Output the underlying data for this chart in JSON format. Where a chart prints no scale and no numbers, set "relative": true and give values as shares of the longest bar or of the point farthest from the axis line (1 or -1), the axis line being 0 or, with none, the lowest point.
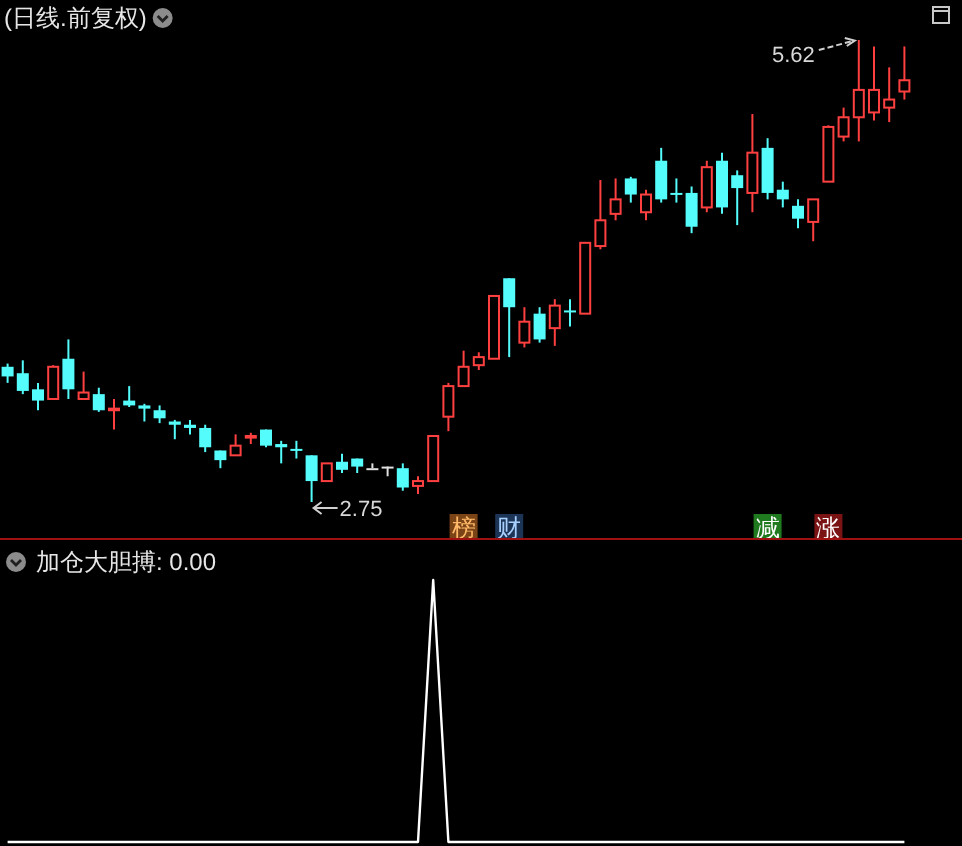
{
  "chart_data": [
    {
      "type": "candlestick",
      "title": "(日线.前复权)",
      "categories": [
        null,
        null,
        null,
        null,
        null,
        null,
        null,
        null,
        null,
        null,
        null,
        null,
        null,
        null,
        null,
        null,
        null,
        null,
        null,
        null,
        null,
        null,
        null,
        null,
        null,
        null,
        null,
        null,
        null,
        null,
        "榜",
        null,
        null,
        "财",
        null,
        null,
        null,
        null,
        null,
        null,
        null,
        null,
        null,
        null,
        null,
        null,
        null,
        null,
        null,
        null,
        "减",
        null,
        null,
        null,
        "涨",
        null,
        null,
        null,
        null,
        null
      ],
      "ohlc": [
        [
          3.59,
          3.61,
          3.49,
          3.53
        ],
        [
          3.55,
          3.63,
          3.42,
          3.44
        ],
        [
          3.45,
          3.49,
          3.32,
          3.38
        ],
        [
          3.39,
          3.6,
          3.39,
          3.59
        ],
        [
          3.64,
          3.76,
          3.39,
          3.45
        ],
        [
          3.39,
          3.56,
          3.39,
          3.43
        ],
        [
          3.42,
          3.46,
          3.31,
          3.32
        ],
        [
          3.32,
          3.39,
          3.2,
          3.33
        ],
        [
          3.38,
          3.47,
          3.34,
          3.35
        ],
        [
          3.35,
          3.36,
          3.25,
          3.33
        ],
        [
          3.32,
          3.35,
          3.24,
          3.27
        ],
        [
          3.25,
          3.26,
          3.14,
          3.23
        ],
        [
          3.23,
          3.26,
          3.17,
          3.21
        ],
        [
          3.21,
          3.23,
          3.06,
          3.09
        ],
        [
          3.07,
          3.07,
          2.96,
          3.01
        ],
        [
          3.04,
          3.17,
          3.04,
          3.1
        ],
        [
          3.15,
          3.18,
          3.11,
          3.16
        ],
        [
          3.2,
          3.2,
          3.09,
          3.1
        ],
        [
          3.11,
          3.13,
          2.99,
          3.09
        ],
        [
          3.08,
          3.13,
          3.02,
          3.07
        ],
        [
          3.04,
          3.04,
          2.75,
          2.88
        ],
        [
          2.88,
          2.99,
          2.88,
          2.99
        ],
        [
          3.0,
          3.05,
          2.93,
          2.95
        ],
        [
          3.02,
          3.02,
          2.93,
          2.97
        ],
        [
          2.96,
          2.99,
          2.96,
          2.96
        ],
        [
          2.97,
          2.97,
          2.91,
          2.97
        ],
        [
          2.96,
          2.99,
          2.82,
          2.84
        ],
        [
          2.85,
          2.91,
          2.8,
          2.88
        ],
        [
          2.88,
          3.16,
          2.88,
          3.16
        ],
        [
          3.28,
          3.49,
          3.19,
          3.47
        ],
        [
          3.47,
          3.69,
          3.47,
          3.59
        ],
        [
          3.6,
          3.68,
          3.57,
          3.65
        ],
        [
          3.64,
          4.03,
          3.64,
          4.03
        ],
        [
          4.14,
          4.14,
          3.65,
          3.96
        ],
        [
          3.74,
          3.96,
          3.71,
          3.87
        ],
        [
          3.92,
          3.96,
          3.74,
          3.76
        ],
        [
          3.83,
          4.01,
          3.72,
          3.97
        ],
        [
          3.94,
          4.01,
          3.84,
          3.93
        ],
        [
          3.92,
          4.36,
          3.92,
          4.36
        ],
        [
          4.34,
          4.75,
          4.32,
          4.5
        ],
        [
          4.54,
          4.76,
          4.5,
          4.63
        ],
        [
          4.76,
          4.77,
          4.61,
          4.66
        ],
        [
          4.55,
          4.69,
          4.5,
          4.66
        ],
        [
          4.87,
          4.95,
          4.61,
          4.63
        ],
        [
          4.67,
          4.76,
          4.61,
          4.66
        ],
        [
          4.67,
          4.71,
          4.42,
          4.46
        ],
        [
          4.58,
          4.87,
          4.55,
          4.83
        ],
        [
          4.87,
          4.92,
          4.54,
          4.58
        ],
        [
          4.78,
          4.81,
          4.47,
          4.7
        ],
        [
          4.67,
          5.16,
          4.55,
          4.92
        ],
        [
          4.95,
          5.01,
          4.63,
          4.67
        ],
        [
          4.69,
          4.74,
          4.58,
          4.63
        ],
        [
          4.59,
          4.63,
          4.45,
          4.51
        ],
        [
          4.49,
          4.63,
          4.37,
          4.63
        ],
        [
          4.74,
          5.09,
          4.74,
          5.08
        ],
        [
          5.02,
          5.2,
          4.99,
          5.14
        ],
        [
          5.14,
          5.62,
          4.99,
          5.31
        ],
        [
          5.17,
          5.58,
          5.12,
          5.31
        ],
        [
          5.2,
          5.45,
          5.11,
          5.25
        ],
        [
          5.3,
          5.58,
          5.25,
          5.37
        ]
      ],
      "annotations": [
        "5.62",
        "2.75"
      ]
    },
    {
      "type": "line",
      "title": "加仓大胆搏: 0.00",
      "relative": true,
      "categories": [
        null,
        null,
        null,
        null,
        null,
        null,
        null,
        null,
        null,
        null,
        null,
        null,
        null,
        null,
        null,
        null,
        null,
        null,
        null,
        null,
        null,
        null,
        null,
        null,
        null,
        null,
        null,
        null,
        null,
        null,
        null,
        null,
        null,
        null,
        null,
        null,
        null,
        null,
        null,
        null,
        null,
        null,
        null,
        null,
        null,
        null,
        null,
        null,
        null,
        null,
        null,
        null,
        null,
        null,
        null,
        null,
        null,
        null,
        null,
        null
      ],
      "series": [
        {
          "color": "#ffffff",
          "values": [
            0,
            0,
            0,
            0,
            0,
            0,
            0,
            0,
            0,
            0,
            0,
            0,
            0,
            0,
            0,
            0,
            0,
            0,
            0,
            0,
            0,
            0,
            0,
            0,
            0,
            0,
            0,
            0,
            1,
            0,
            0,
            0,
            0,
            0,
            0,
            0,
            0,
            0,
            0,
            0,
            0,
            0,
            0,
            0,
            0,
            0,
            0,
            0,
            0,
            0,
            0,
            0,
            0,
            0,
            0,
            0,
            0,
            0,
            0,
            0
          ]
        }
      ]
    }
  ]
}
